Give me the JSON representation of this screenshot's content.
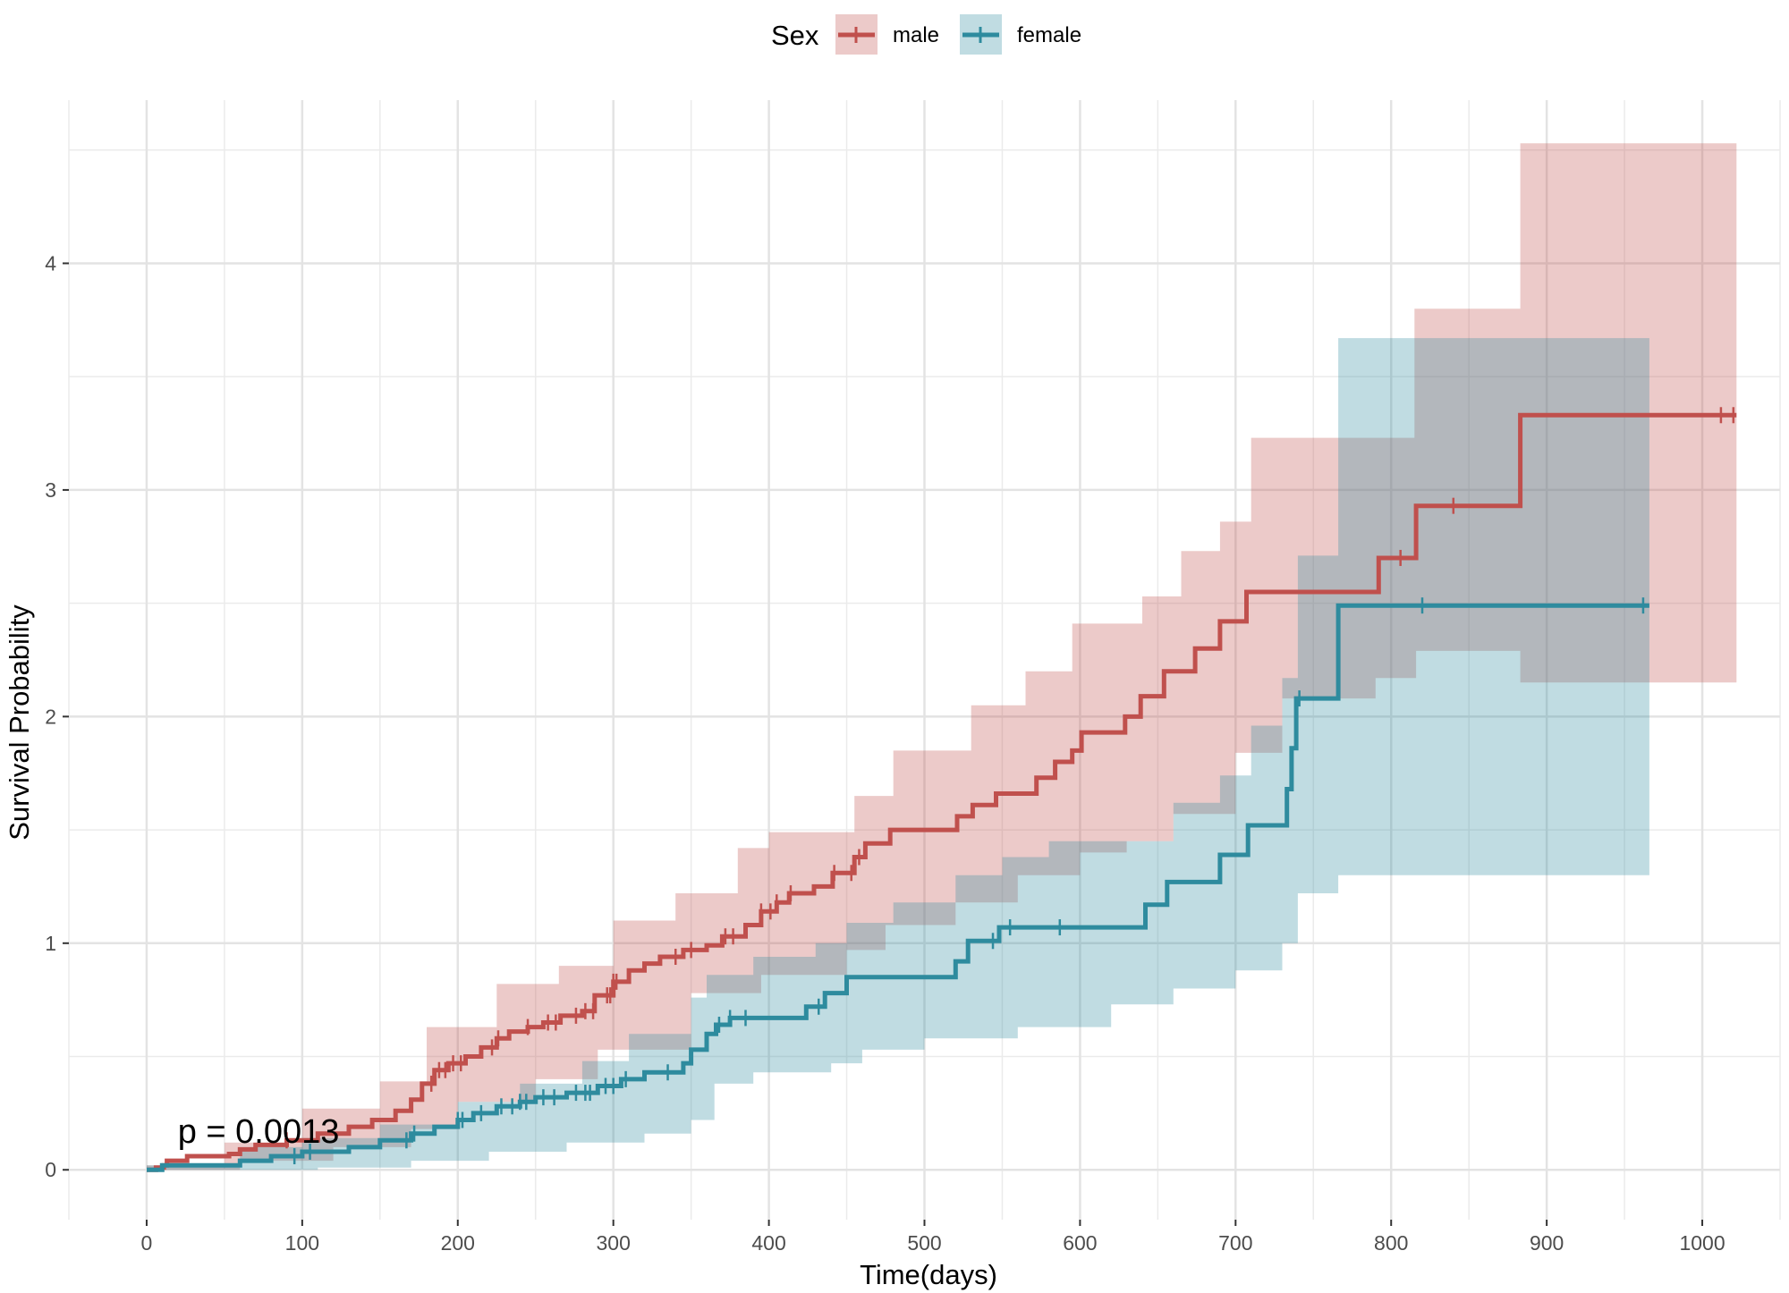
{
  "chart_data": {
    "type": "line",
    "subtype": "cumulative-hazard-step",
    "xlabel": "Time(days)",
    "ylabel": "Survival Probability",
    "xlim": [
      -50,
      1050
    ],
    "ylim": [
      -0.22,
      4.72
    ],
    "x_ticks": [
      0,
      100,
      200,
      300,
      400,
      500,
      600,
      700,
      800,
      900,
      1000
    ],
    "x_tick_labels": [
      "0",
      "100",
      "200",
      "300",
      "400",
      "500",
      "600",
      "700",
      "800",
      "900",
      "1000"
    ],
    "y_ticks": [
      0,
      1,
      2,
      3,
      4
    ],
    "y_tick_labels": [
      "0",
      "1",
      "2",
      "3",
      "4"
    ],
    "grid": true,
    "legend": {
      "title": "Sex",
      "position": "top",
      "entries": [
        "male",
        "female"
      ]
    },
    "annotation": {
      "text": "p = 0.0013",
      "x": 20,
      "y": 0.12
    },
    "series": [
      {
        "name": "male",
        "color": "#C0504D",
        "steps": [
          [
            0,
            0
          ],
          [
            6,
            0.01
          ],
          [
            11,
            0.02
          ],
          [
            13,
            0.04
          ],
          [
            26,
            0.06
          ],
          [
            53,
            0.07
          ],
          [
            60,
            0.09
          ],
          [
            70,
            0.11
          ],
          [
            90,
            0.13
          ],
          [
            110,
            0.16
          ],
          [
            130,
            0.19
          ],
          [
            145,
            0.22
          ],
          [
            160,
            0.26
          ],
          [
            170,
            0.31
          ],
          [
            177,
            0.38
          ],
          [
            185,
            0.44
          ],
          [
            194,
            0.47
          ],
          [
            205,
            0.5
          ],
          [
            215,
            0.54
          ],
          [
            225,
            0.58
          ],
          [
            233,
            0.61
          ],
          [
            245,
            0.63
          ],
          [
            255,
            0.65
          ],
          [
            266,
            0.68
          ],
          [
            280,
            0.7
          ],
          [
            288,
            0.77
          ],
          [
            300,
            0.83
          ],
          [
            310,
            0.88
          ],
          [
            320,
            0.91
          ],
          [
            330,
            0.94
          ],
          [
            345,
            0.97
          ],
          [
            360,
            0.99
          ],
          [
            370,
            1.03
          ],
          [
            385,
            1.08
          ],
          [
            395,
            1.14
          ],
          [
            405,
            1.18
          ],
          [
            413,
            1.22
          ],
          [
            429,
            1.25
          ],
          [
            441,
            1.31
          ],
          [
            455,
            1.38
          ],
          [
            462,
            1.44
          ],
          [
            478,
            1.5
          ],
          [
            521,
            1.56
          ],
          [
            531,
            1.61
          ],
          [
            546,
            1.66
          ],
          [
            572,
            1.73
          ],
          [
            584,
            1.8
          ],
          [
            595,
            1.85
          ],
          [
            601,
            1.93
          ],
          [
            629,
            2.0
          ],
          [
            639,
            2.09
          ],
          [
            654,
            2.2
          ],
          [
            674,
            2.3
          ],
          [
            690,
            2.42
          ],
          [
            707,
            2.55
          ],
          [
            792,
            2.7
          ],
          [
            816,
            2.93
          ],
          [
            883,
            3.33
          ],
          [
            1022,
            3.33
          ]
        ],
        "ci_upper": [
          [
            0,
            0.02
          ],
          [
            50,
            0.12
          ],
          [
            100,
            0.27
          ],
          [
            150,
            0.39
          ],
          [
            180,
            0.63
          ],
          [
            225,
            0.82
          ],
          [
            265,
            0.9
          ],
          [
            300,
            1.1
          ],
          [
            340,
            1.22
          ],
          [
            380,
            1.42
          ],
          [
            400,
            1.49
          ],
          [
            455,
            1.65
          ],
          [
            480,
            1.85
          ],
          [
            530,
            2.05
          ],
          [
            565,
            2.2
          ],
          [
            595,
            2.41
          ],
          [
            640,
            2.53
          ],
          [
            665,
            2.73
          ],
          [
            690,
            2.86
          ],
          [
            710,
            3.23
          ],
          [
            800,
            3.23
          ],
          [
            815,
            3.8
          ],
          [
            883,
            4.53
          ],
          [
            1022,
            4.53
          ]
        ],
        "ci_lower": [
          [
            0,
            0
          ],
          [
            60,
            0.04
          ],
          [
            120,
            0.1
          ],
          [
            170,
            0.18
          ],
          [
            200,
            0.3
          ],
          [
            250,
            0.4
          ],
          [
            290,
            0.53
          ],
          [
            350,
            0.78
          ],
          [
            395,
            0.86
          ],
          [
            450,
            0.97
          ],
          [
            475,
            1.08
          ],
          [
            520,
            1.18
          ],
          [
            560,
            1.3
          ],
          [
            600,
            1.4
          ],
          [
            630,
            1.45
          ],
          [
            660,
            1.57
          ],
          [
            700,
            1.84
          ],
          [
            730,
            2.08
          ],
          [
            790,
            2.17
          ],
          [
            816,
            2.29
          ],
          [
            883,
            2.15
          ],
          [
            1022,
            2.15
          ]
        ],
        "censor_times": [
          90,
          183,
          188,
          192,
          197,
          202,
          222,
          226,
          245,
          258,
          263,
          276,
          282,
          287,
          296,
          298,
          300,
          302,
          340,
          350,
          372,
          377,
          395,
          401,
          405,
          414,
          442,
          453,
          458,
          806,
          840,
          1012,
          1020
        ]
      },
      {
        "name": "female",
        "color": "#2E8B9E",
        "steps": [
          [
            0,
            0
          ],
          [
            10,
            0.02
          ],
          [
            60,
            0.04
          ],
          [
            80,
            0.06
          ],
          [
            100,
            0.08
          ],
          [
            130,
            0.1
          ],
          [
            150,
            0.13
          ],
          [
            170,
            0.16
          ],
          [
            185,
            0.19
          ],
          [
            200,
            0.22
          ],
          [
            210,
            0.25
          ],
          [
            225,
            0.28
          ],
          [
            240,
            0.3
          ],
          [
            250,
            0.32
          ],
          [
            270,
            0.34
          ],
          [
            290,
            0.37
          ],
          [
            305,
            0.4
          ],
          [
            320,
            0.43
          ],
          [
            345,
            0.47
          ],
          [
            350,
            0.53
          ],
          [
            360,
            0.6
          ],
          [
            366,
            0.64
          ],
          [
            375,
            0.67
          ],
          [
            424,
            0.72
          ],
          [
            436,
            0.78
          ],
          [
            450,
            0.85
          ],
          [
            520,
            0.92
          ],
          [
            528,
            1.01
          ],
          [
            548,
            1.07
          ],
          [
            642,
            1.17
          ],
          [
            656,
            1.27
          ],
          [
            690,
            1.39
          ],
          [
            708,
            1.52
          ],
          [
            733,
            1.68
          ],
          [
            736,
            1.86
          ],
          [
            739,
            2.08
          ],
          [
            766,
            2.49
          ],
          [
            966,
            2.49
          ]
        ],
        "ci_upper": [
          [
            0,
            0.02
          ],
          [
            60,
            0.1
          ],
          [
            100,
            0.14
          ],
          [
            150,
            0.2
          ],
          [
            200,
            0.3
          ],
          [
            240,
            0.38
          ],
          [
            280,
            0.48
          ],
          [
            310,
            0.6
          ],
          [
            350,
            0.76
          ],
          [
            360,
            0.86
          ],
          [
            390,
            0.94
          ],
          [
            430,
            1.0
          ],
          [
            450,
            1.09
          ],
          [
            480,
            1.18
          ],
          [
            520,
            1.3
          ],
          [
            550,
            1.38
          ],
          [
            580,
            1.45
          ],
          [
            640,
            1.45
          ],
          [
            660,
            1.62
          ],
          [
            690,
            1.74
          ],
          [
            710,
            1.96
          ],
          [
            730,
            2.17
          ],
          [
            740,
            2.71
          ],
          [
            766,
            3.67
          ],
          [
            966,
            3.67
          ]
        ],
        "ci_lower": [
          [
            0,
            0
          ],
          [
            60,
            0.0
          ],
          [
            110,
            0.01
          ],
          [
            170,
            0.04
          ],
          [
            220,
            0.08
          ],
          [
            270,
            0.12
          ],
          [
            320,
            0.16
          ],
          [
            350,
            0.22
          ],
          [
            365,
            0.38
          ],
          [
            390,
            0.43
          ],
          [
            440,
            0.47
          ],
          [
            460,
            0.53
          ],
          [
            500,
            0.58
          ],
          [
            560,
            0.63
          ],
          [
            620,
            0.73
          ],
          [
            660,
            0.8
          ],
          [
            700,
            0.88
          ],
          [
            730,
            1.0
          ],
          [
            740,
            1.22
          ],
          [
            766,
            1.3
          ],
          [
            966,
            1.3
          ]
        ],
        "censor_times": [
          95,
          105,
          167,
          172,
          200,
          203,
          215,
          228,
          235,
          240,
          244,
          255,
          262,
          276,
          282,
          285,
          295,
          300,
          308,
          335,
          368,
          375,
          385,
          432,
          544,
          555,
          587,
          741,
          820,
          962
        ]
      }
    ]
  }
}
